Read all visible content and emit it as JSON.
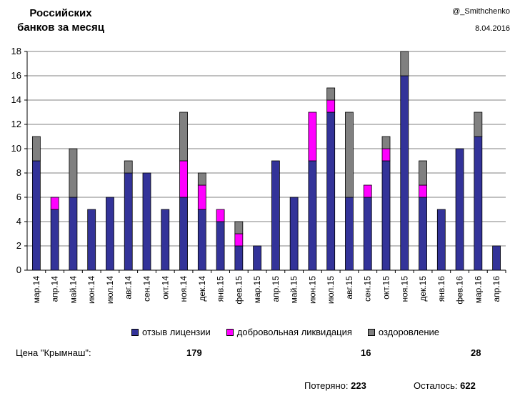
{
  "header": {
    "title_line1": "Российских",
    "title_line2": "банков за месяц",
    "author": "@_Smithchenko",
    "date": "8.04.2016"
  },
  "colors": {
    "license": "#333399",
    "voluntary": "#ff00ff",
    "recovery": "#808080",
    "grid": "#808080"
  },
  "chart_data": {
    "type": "bar",
    "stacked": true,
    "categories": [
      "мар.14",
      "апр.14",
      "май.14",
      "июн.14",
      "июл.14",
      "авг.14",
      "сен.14",
      "окт.14",
      "ноя.14",
      "дек.14",
      "янв.15",
      "фев.15",
      "мар.15",
      "апр.15",
      "май.15",
      "июн.15",
      "июл.15",
      "авг.15",
      "сен.15",
      "окт.15",
      "ноя.15",
      "дек.15",
      "янв.16",
      "фев.16",
      "мар.16",
      "апр.16"
    ],
    "series": [
      {
        "name": "отзыв лицензии",
        "color": "#333399",
        "values": [
          9,
          5,
          6,
          5,
          6,
          8,
          8,
          5,
          6,
          5,
          4,
          2,
          2,
          9,
          6,
          9,
          13,
          6,
          6,
          9,
          16,
          6,
          5,
          10,
          11,
          2
        ]
      },
      {
        "name": "добровольная ликвидация",
        "color": "#ff00ff",
        "values": [
          0,
          1,
          0,
          0,
          0,
          0,
          0,
          0,
          3,
          2,
          1,
          1,
          0,
          0,
          0,
          4,
          1,
          0,
          1,
          1,
          0,
          1,
          0,
          0,
          0,
          0
        ]
      },
      {
        "name": "оздоровление",
        "color": "#808080",
        "values": [
          2,
          0,
          4,
          0,
          0,
          1,
          0,
          0,
          4,
          1,
          0,
          1,
          0,
          0,
          0,
          0,
          1,
          7,
          0,
          1,
          2,
          2,
          0,
          0,
          2,
          0
        ]
      }
    ],
    "ylim": [
      0,
      18
    ],
    "yticks": [
      0,
      2,
      4,
      6,
      8,
      10,
      12,
      14,
      16,
      18
    ],
    "grid": true,
    "legend_position": "bottom"
  },
  "stats": {
    "crimea_label": "Цена \"Крымнаш\":",
    "crimea_license": "179",
    "crimea_voluntary": "16",
    "crimea_recovery": "28",
    "lost_label": "Потеряно:",
    "lost_value": "223",
    "left_label": "Осталось:",
    "left_value": "622"
  }
}
